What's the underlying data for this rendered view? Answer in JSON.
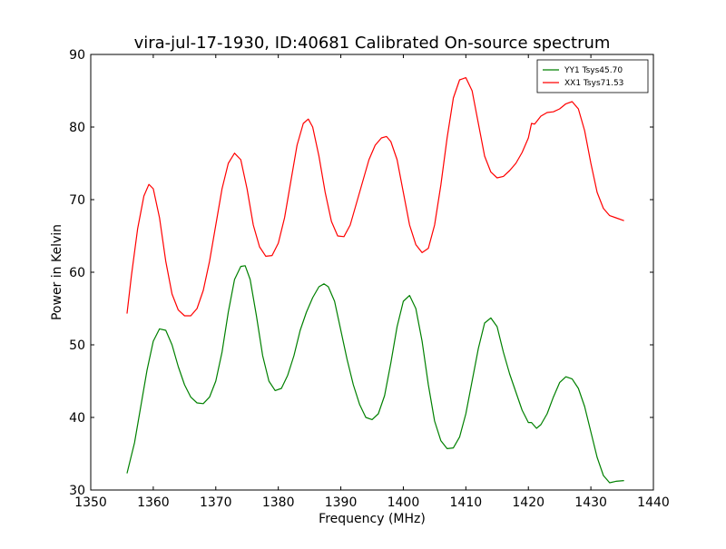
{
  "chart_data": {
    "type": "line",
    "title": "vira-jul-17-1930, ID:40681 Calibrated On-source spectrum",
    "xlabel": "Frequency (MHz)",
    "ylabel": "Power in Kelvin",
    "xlim": [
      1350,
      1440
    ],
    "ylim": [
      30,
      90
    ],
    "xticks": [
      1350,
      1360,
      1370,
      1380,
      1390,
      1400,
      1410,
      1420,
      1430,
      1440
    ],
    "yticks": [
      30,
      40,
      50,
      60,
      70,
      80,
      90
    ],
    "grid": false,
    "legend_position": "top-right",
    "series": [
      {
        "name": "YY1 Tsys45.70",
        "color": "#008000",
        "points": [
          [
            1355.8,
            32.3
          ],
          [
            1357.0,
            36.5
          ],
          [
            1358.0,
            41.5
          ],
          [
            1359.0,
            46.5
          ],
          [
            1360.0,
            50.5
          ],
          [
            1361.0,
            52.2
          ],
          [
            1362.0,
            52.0
          ],
          [
            1363.0,
            50.0
          ],
          [
            1364.0,
            47.0
          ],
          [
            1365.0,
            44.5
          ],
          [
            1366.0,
            42.8
          ],
          [
            1367.0,
            42.0
          ],
          [
            1368.0,
            41.9
          ],
          [
            1369.0,
            42.8
          ],
          [
            1370.0,
            45.0
          ],
          [
            1371.0,
            49.0
          ],
          [
            1372.0,
            54.5
          ],
          [
            1373.0,
            59.0
          ],
          [
            1374.0,
            60.8
          ],
          [
            1374.7,
            60.9
          ],
          [
            1375.5,
            59.0
          ],
          [
            1376.5,
            54.0
          ],
          [
            1377.5,
            48.5
          ],
          [
            1378.5,
            45.0
          ],
          [
            1379.5,
            43.7
          ],
          [
            1380.5,
            44.0
          ],
          [
            1381.5,
            45.8
          ],
          [
            1382.5,
            48.5
          ],
          [
            1383.5,
            52.0
          ],
          [
            1384.5,
            54.5
          ],
          [
            1385.5,
            56.5
          ],
          [
            1386.5,
            58.0
          ],
          [
            1387.3,
            58.4
          ],
          [
            1388.0,
            58.0
          ],
          [
            1389.0,
            56.0
          ],
          [
            1390.0,
            52.0
          ],
          [
            1391.0,
            48.0
          ],
          [
            1392.0,
            44.5
          ],
          [
            1393.0,
            41.8
          ],
          [
            1394.0,
            40.0
          ],
          [
            1395.0,
            39.7
          ],
          [
            1396.0,
            40.5
          ],
          [
            1397.0,
            43.0
          ],
          [
            1398.0,
            47.5
          ],
          [
            1399.0,
            52.5
          ],
          [
            1400.0,
            56.0
          ],
          [
            1401.0,
            56.8
          ],
          [
            1402.0,
            55.0
          ],
          [
            1403.0,
            50.5
          ],
          [
            1404.0,
            44.5
          ],
          [
            1405.0,
            39.5
          ],
          [
            1406.0,
            36.8
          ],
          [
            1407.0,
            35.7
          ],
          [
            1408.0,
            35.8
          ],
          [
            1409.0,
            37.3
          ],
          [
            1410.0,
            40.5
          ],
          [
            1411.0,
            45.0
          ],
          [
            1412.0,
            49.5
          ],
          [
            1413.0,
            53.0
          ],
          [
            1414.0,
            53.7
          ],
          [
            1415.0,
            52.5
          ],
          [
            1416.0,
            49.0
          ],
          [
            1417.0,
            46.0
          ],
          [
            1418.0,
            43.5
          ],
          [
            1419.0,
            41.0
          ],
          [
            1420.0,
            39.3
          ],
          [
            1420.5,
            39.3
          ],
          [
            1421.3,
            38.5
          ],
          [
            1422.0,
            39.0
          ],
          [
            1423.0,
            40.5
          ],
          [
            1424.0,
            42.8
          ],
          [
            1425.0,
            44.8
          ],
          [
            1426.0,
            45.6
          ],
          [
            1427.0,
            45.3
          ],
          [
            1428.0,
            44.0
          ],
          [
            1429.0,
            41.5
          ],
          [
            1430.0,
            38.0
          ],
          [
            1431.0,
            34.5
          ],
          [
            1432.0,
            32.0
          ],
          [
            1433.0,
            31.0
          ],
          [
            1434.0,
            31.2
          ],
          [
            1435.3,
            31.3
          ]
        ]
      },
      {
        "name": "XX1 Tsys71.53",
        "color": "#ff0000",
        "points": [
          [
            1355.8,
            54.3
          ],
          [
            1356.5,
            59.5
          ],
          [
            1357.5,
            66.0
          ],
          [
            1358.5,
            70.5
          ],
          [
            1359.3,
            72.1
          ],
          [
            1360.0,
            71.5
          ],
          [
            1361.0,
            67.5
          ],
          [
            1362.0,
            61.5
          ],
          [
            1363.0,
            57.0
          ],
          [
            1364.0,
            54.8
          ],
          [
            1365.0,
            54.0
          ],
          [
            1366.0,
            54.0
          ],
          [
            1367.0,
            55.0
          ],
          [
            1368.0,
            57.5
          ],
          [
            1369.0,
            61.5
          ],
          [
            1370.0,
            66.5
          ],
          [
            1371.0,
            71.5
          ],
          [
            1372.0,
            75.0
          ],
          [
            1373.0,
            76.4
          ],
          [
            1374.0,
            75.5
          ],
          [
            1375.0,
            71.5
          ],
          [
            1376.0,
            66.5
          ],
          [
            1377.0,
            63.5
          ],
          [
            1378.0,
            62.2
          ],
          [
            1379.0,
            62.3
          ],
          [
            1380.0,
            64.0
          ],
          [
            1381.0,
            67.5
          ],
          [
            1382.0,
            72.5
          ],
          [
            1383.0,
            77.5
          ],
          [
            1384.0,
            80.5
          ],
          [
            1384.8,
            81.1
          ],
          [
            1385.5,
            80.0
          ],
          [
            1386.5,
            76.0
          ],
          [
            1387.5,
            71.0
          ],
          [
            1388.5,
            67.0
          ],
          [
            1389.5,
            65.0
          ],
          [
            1390.5,
            64.9
          ],
          [
            1391.5,
            66.5
          ],
          [
            1392.5,
            69.5
          ],
          [
            1393.5,
            72.5
          ],
          [
            1394.5,
            75.5
          ],
          [
            1395.5,
            77.5
          ],
          [
            1396.5,
            78.5
          ],
          [
            1397.3,
            78.7
          ],
          [
            1398.0,
            78.0
          ],
          [
            1399.0,
            75.5
          ],
          [
            1400.0,
            71.0
          ],
          [
            1401.0,
            66.5
          ],
          [
            1402.0,
            63.8
          ],
          [
            1403.0,
            62.7
          ],
          [
            1404.0,
            63.3
          ],
          [
            1405.0,
            66.5
          ],
          [
            1406.0,
            72.0
          ],
          [
            1407.0,
            78.5
          ],
          [
            1408.0,
            84.0
          ],
          [
            1409.0,
            86.5
          ],
          [
            1410.0,
            86.8
          ],
          [
            1411.0,
            85.0
          ],
          [
            1412.0,
            80.5
          ],
          [
            1413.0,
            76.0
          ],
          [
            1414.0,
            73.8
          ],
          [
            1415.0,
            73.0
          ],
          [
            1416.0,
            73.2
          ],
          [
            1417.0,
            74.0
          ],
          [
            1418.0,
            75.0
          ],
          [
            1419.0,
            76.5
          ],
          [
            1420.0,
            78.5
          ],
          [
            1420.5,
            80.5
          ],
          [
            1421.0,
            80.4
          ],
          [
            1422.0,
            81.5
          ],
          [
            1423.0,
            82.0
          ],
          [
            1424.0,
            82.1
          ],
          [
            1425.0,
            82.5
          ],
          [
            1426.0,
            83.2
          ],
          [
            1427.0,
            83.5
          ],
          [
            1428.0,
            82.5
          ],
          [
            1429.0,
            79.5
          ],
          [
            1430.0,
            75.0
          ],
          [
            1431.0,
            71.0
          ],
          [
            1432.0,
            68.8
          ],
          [
            1433.0,
            67.8
          ],
          [
            1434.0,
            67.5
          ],
          [
            1435.3,
            67.1
          ]
        ]
      }
    ]
  }
}
